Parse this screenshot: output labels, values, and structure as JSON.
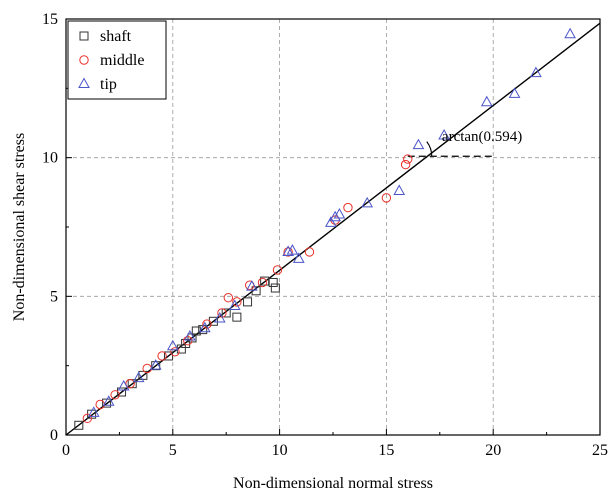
{
  "chart_data": {
    "type": "scatter",
    "title": "",
    "xlabel": "Non-dimensional normal stress",
    "ylabel": "Non-dimensional shear stress",
    "xlim": [
      0,
      25
    ],
    "ylim": [
      0,
      15
    ],
    "xticks": [
      "0",
      "5",
      "10",
      "15",
      "20",
      "25"
    ],
    "yticks": [
      "0",
      "5",
      "10",
      "15"
    ],
    "grid": true,
    "legend_position": "top-left",
    "series": [
      {
        "name": "shaft",
        "marker": "square",
        "color": "#333333",
        "x": [
          0.6,
          1.2,
          1.9,
          2.6,
          3.1,
          3.6,
          4.2,
          4.8,
          5.4,
          5.9,
          6.4,
          6.9,
          7.5,
          8.0,
          8.5,
          8.9,
          9.3,
          9.7,
          9.8,
          5.6,
          6.1
        ],
        "y": [
          0.35,
          0.75,
          1.15,
          1.55,
          1.85,
          2.15,
          2.5,
          2.85,
          3.1,
          3.5,
          3.8,
          4.1,
          4.4,
          4.25,
          4.8,
          5.2,
          5.55,
          5.5,
          5.3,
          3.3,
          3.75
        ]
      },
      {
        "name": "middle",
        "marker": "circle",
        "color": "#e8312a",
        "x": [
          1.0,
          1.6,
          2.3,
          3.0,
          3.8,
          4.5,
          5.1,
          5.7,
          6.6,
          7.3,
          7.6,
          8.0,
          8.6,
          9.2,
          9.9,
          10.4,
          11.4,
          12.6,
          13.2,
          15.0,
          15.9,
          16.0
        ],
        "y": [
          0.6,
          1.1,
          1.45,
          1.85,
          2.4,
          2.85,
          3.0,
          3.4,
          4.0,
          4.4,
          4.95,
          4.8,
          5.4,
          5.5,
          5.95,
          6.6,
          6.6,
          7.75,
          8.2,
          8.55,
          9.75,
          9.95
        ]
      },
      {
        "name": "tip",
        "marker": "triangle",
        "color": "#4a55c8",
        "x": [
          1.3,
          2.0,
          2.7,
          3.4,
          4.2,
          5.0,
          5.8,
          6.5,
          7.2,
          7.9,
          8.7,
          10.4,
          10.6,
          10.9,
          12.4,
          12.6,
          12.8,
          14.1,
          15.6,
          16.5,
          17.7,
          19.7,
          21.0,
          22.0,
          23.6
        ],
        "y": [
          0.8,
          1.2,
          1.75,
          2.05,
          2.5,
          3.2,
          3.55,
          3.85,
          4.2,
          4.65,
          5.35,
          6.6,
          6.65,
          6.35,
          7.65,
          7.85,
          7.95,
          8.35,
          8.8,
          10.45,
          10.8,
          12.0,
          12.3,
          13.05,
          14.45
        ]
      }
    ],
    "fit_line": {
      "slope": 0.594,
      "intercept": 0,
      "x": [
        0,
        25
      ]
    },
    "annotation": {
      "text": "arctan(0.594)",
      "x": 17.6,
      "y": 10.6
    },
    "angle_marker": {
      "x": 16.0,
      "y": 10.05,
      "ref_x_end": 20.0
    }
  }
}
